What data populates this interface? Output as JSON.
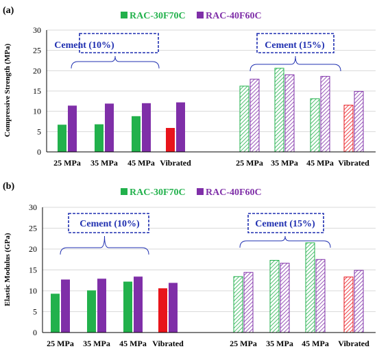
{
  "colors": {
    "rac30": "#22b14c",
    "rac40": "#7f2fa8",
    "vibrated": "#e8141b",
    "annotation": "#1f2fb0",
    "grid": "#d9d9d9"
  },
  "chart_data": [
    {
      "type": "bar",
      "panel_label": "(a)",
      "ylabel": "Compressive Strength (MPa)",
      "ylim": [
        0,
        30
      ],
      "yticks": [
        0,
        5,
        10,
        15,
        20,
        25,
        30
      ],
      "grid": true,
      "legend": {
        "placement": "top",
        "entries": [
          "RAC-30F70C",
          "RAC-40F60C"
        ]
      },
      "groups": [
        {
          "annotation": "Cement (10%)",
          "pattern": "solid",
          "categories": [
            "25 MPa",
            "35 MPa",
            "45 MPa",
            "Vibrated"
          ],
          "series": [
            {
              "name": "RAC-30F70C",
              "values": [
                6.7,
                6.8,
                8.8,
                5.9
              ]
            },
            {
              "name": "RAC-40F60C",
              "values": [
                11.4,
                11.9,
                12.0,
                12.2
              ]
            }
          ]
        },
        {
          "annotation": "Cement (15%)",
          "pattern": "hatched",
          "categories": [
            "25 MPa",
            "35 MPa",
            "45 MPa",
            "Vibrated"
          ],
          "series": [
            {
              "name": "RAC-30F70C",
              "values": [
                16.2,
                20.6,
                13.1,
                11.5
              ]
            },
            {
              "name": "RAC-40F60C",
              "values": [
                17.9,
                19.0,
                18.6,
                14.9
              ]
            }
          ]
        }
      ]
    },
    {
      "type": "bar",
      "panel_label": "(b)",
      "ylabel": "Elastic Modulus (GPa)",
      "ylim": [
        0,
        30
      ],
      "yticks": [
        0,
        5,
        10,
        15,
        20,
        25,
        30
      ],
      "grid": true,
      "legend": {
        "placement": "top",
        "entries": [
          "RAC-30F70C",
          "RAC-40F60C"
        ]
      },
      "groups": [
        {
          "annotation": "Cement (10%)",
          "pattern": "solid",
          "categories": [
            "25 MPa",
            "35 MPa",
            "45 MPa",
            "Vibrated"
          ],
          "series": [
            {
              "name": "RAC-30F70C",
              "values": [
                9.3,
                10.1,
                12.2,
                10.6
              ]
            },
            {
              "name": "RAC-40F60C",
              "values": [
                12.7,
                12.9,
                13.4,
                11.9
              ]
            }
          ]
        },
        {
          "annotation": "Cement (15%)",
          "pattern": "hatched",
          "categories": [
            "25 MPa",
            "35 MPa",
            "45 MPa",
            "Vibrated"
          ],
          "series": [
            {
              "name": "RAC-30F70C",
              "values": [
                13.4,
                17.3,
                21.5,
                13.3
              ]
            },
            {
              "name": "RAC-40F60C",
              "values": [
                14.4,
                16.6,
                17.5,
                14.9
              ]
            }
          ]
        }
      ]
    }
  ]
}
